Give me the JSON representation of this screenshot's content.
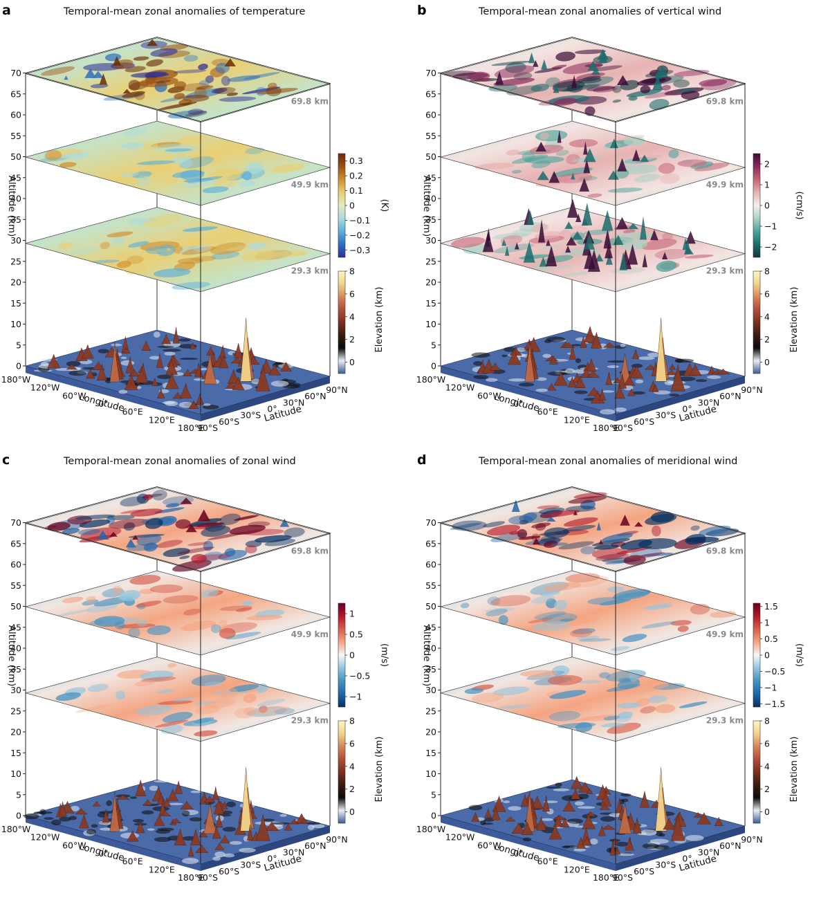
{
  "layer_labels": [
    "69.8 km",
    "49.9 km",
    "29.3 km"
  ],
  "chart_data": [
    {
      "id": "a",
      "type": "surface3d",
      "label": "a",
      "title": "Temporal-mean zonal anomalies of temperature",
      "xlabel": "Longitude",
      "ylabel": "Latitude",
      "zlabel": "Altitude (km)",
      "zlim": [
        0,
        70
      ],
      "zticks": [
        "0",
        "5",
        "10",
        "15",
        "20",
        "25",
        "30",
        "35",
        "40",
        "45",
        "50",
        "55",
        "60",
        "65",
        "70"
      ],
      "xticks": [
        "180°W",
        "120°W",
        "60°W",
        "0°",
        "60°E",
        "120°E",
        "180°E"
      ],
      "yticks": [
        "90°S",
        "60°S",
        "30°S",
        "0°",
        "30°N",
        "60°N",
        "90°N"
      ],
      "layers": [
        69.8,
        49.9,
        29.3
      ],
      "colorbar": {
        "label": "(K)",
        "ticks": [
          "0.3",
          "0.2",
          "0.1",
          "0",
          "−0.1",
          "−0.2",
          "−0.3"
        ],
        "range": [
          -0.35,
          0.35
        ],
        "cmap": "roma"
      },
      "elev_colorbar": {
        "label": "Elevation (km)",
        "ticks": [
          "8",
          "6",
          "4",
          "2",
          "0"
        ],
        "range": [
          -1,
          8
        ]
      }
    },
    {
      "id": "b",
      "type": "surface3d",
      "label": "b",
      "title": "Temporal-mean zonal anomalies of vertical wind",
      "xlabel": "Longitude",
      "ylabel": "Latitude",
      "zlabel": "Altitude (km)",
      "zlim": [
        0,
        70
      ],
      "zticks": [
        "0",
        "5",
        "10",
        "15",
        "20",
        "25",
        "30",
        "35",
        "40",
        "45",
        "50",
        "55",
        "60",
        "65",
        "70"
      ],
      "xticks": [
        "180°W",
        "120°W",
        "60°W",
        "0°",
        "60°E",
        "120°E",
        "180°E"
      ],
      "yticks": [
        "90°S",
        "60°S",
        "30°S",
        "0°",
        "30°N",
        "60°N",
        "90°N"
      ],
      "layers": [
        69.8,
        49.9,
        29.3
      ],
      "colorbar": {
        "label": "(cm/s)",
        "ticks": [
          "2",
          "1",
          "0",
          "−1",
          "−2"
        ],
        "range": [
          -2.5,
          2.5
        ],
        "cmap": "curl"
      },
      "elev_colorbar": {
        "label": "Elevation (km)",
        "ticks": [
          "8",
          "6",
          "4",
          "2",
          "0"
        ],
        "range": [
          -1,
          8
        ]
      }
    },
    {
      "id": "c",
      "type": "surface3d",
      "label": "c",
      "title": "Temporal-mean zonal anomalies of zonal wind",
      "xlabel": "Longitude",
      "ylabel": "Latitude",
      "zlabel": "Altitude (km)",
      "zlim": [
        0,
        70
      ],
      "zticks": [
        "0",
        "5",
        "10",
        "15",
        "20",
        "25",
        "30",
        "35",
        "40",
        "45",
        "50",
        "55",
        "60",
        "65",
        "70"
      ],
      "xticks": [
        "180°W",
        "120°W",
        "60°W",
        "0°",
        "60°E",
        "120°E",
        "180°E"
      ],
      "yticks": [
        "90°S",
        "60°S",
        "30°S",
        "0°",
        "30°N",
        "60°N",
        "90°N"
      ],
      "layers": [
        69.8,
        49.9,
        29.3
      ],
      "colorbar": {
        "label": "(m/s)",
        "ticks": [
          "1",
          "0.5",
          "0",
          "−0.5",
          "−1"
        ],
        "range": [
          -1.25,
          1.25
        ],
        "cmap": "RdBu"
      },
      "elev_colorbar": {
        "label": "Elevation (km)",
        "ticks": [
          "8",
          "6",
          "4",
          "2",
          "0"
        ],
        "range": [
          -1,
          8
        ]
      }
    },
    {
      "id": "d",
      "type": "surface3d",
      "label": "d",
      "title": "Temporal-mean zonal anomalies of meridional wind",
      "xlabel": "Longitude",
      "ylabel": "Latitude",
      "zlabel": "Altitude (km)",
      "zlim": [
        0,
        70
      ],
      "zticks": [
        "0",
        "5",
        "10",
        "15",
        "20",
        "25",
        "30",
        "35",
        "40",
        "45",
        "50",
        "55",
        "60",
        "65",
        "70"
      ],
      "xticks": [
        "180°W",
        "120°W",
        "60°W",
        "0°",
        "60°E",
        "120°E",
        "180°E"
      ],
      "yticks": [
        "90°S",
        "60°S",
        "30°S",
        "0°",
        "30°N",
        "60°N",
        "90°N"
      ],
      "layers": [
        69.8,
        49.9,
        29.3
      ],
      "colorbar": {
        "label": "(m/s)",
        "ticks": [
          "1.5",
          "1",
          "0.5",
          "0",
          "−0.5",
          "−1",
          "−1.5"
        ],
        "range": [
          -1.6,
          1.6
        ],
        "cmap": "RdBu"
      },
      "elev_colorbar": {
        "label": "Elevation (km)",
        "ticks": [
          "8",
          "6",
          "4",
          "2",
          "0"
        ],
        "range": [
          -1,
          8
        ]
      }
    }
  ]
}
